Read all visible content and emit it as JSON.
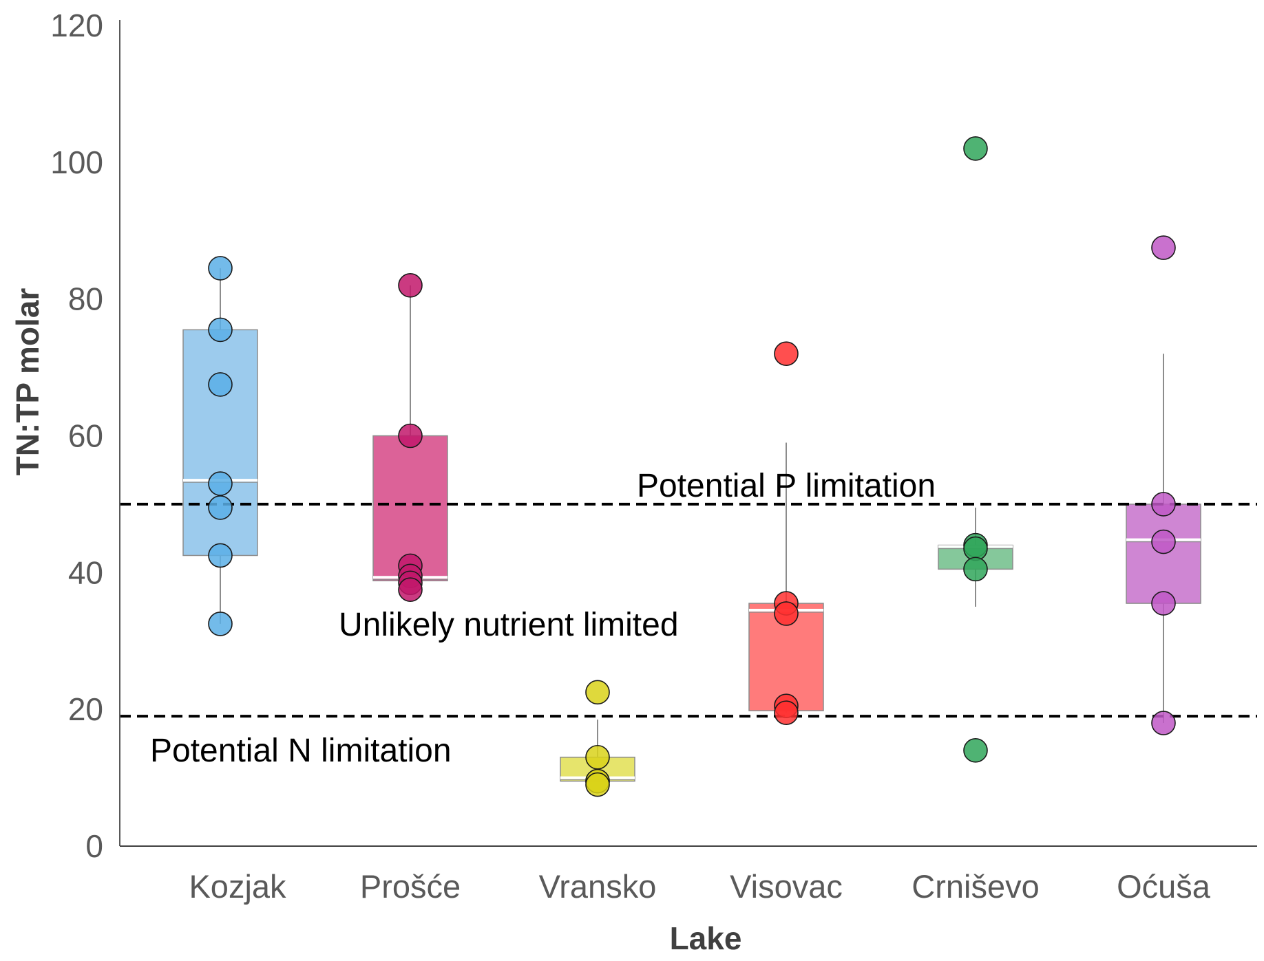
{
  "chart_data": {
    "type": "box",
    "title": "",
    "xlabel": "Lake",
    "ylabel": "TN:TP molar",
    "ylim": [
      0,
      120
    ],
    "yticks": [
      0,
      20,
      40,
      60,
      80,
      100,
      120
    ],
    "grid": false,
    "legend": "none",
    "categories": [
      "Kozjak",
      "Prošće",
      "Vransko",
      "Visovac",
      "Crniševo",
      "Oćuša"
    ],
    "series": [
      {
        "name": "Kozjak",
        "color": "#5aafe6",
        "box_color": "#9ccbed",
        "points": [
          84.5,
          75.5,
          67.5,
          53,
          49.5,
          42.5,
          32.5
        ],
        "min": 32.5,
        "q1": 42.5,
        "median": 53.5,
        "q3": 75.5,
        "max": 84.5
      },
      {
        "name": "Prošće",
        "color": "#c2186b",
        "box_color": "#dc6298",
        "points": [
          82,
          60,
          41,
          39.5,
          38.5,
          37.5
        ],
        "min": 38.5,
        "q1": 38.8,
        "median": 39.3,
        "q3": 60,
        "max": 82
      },
      {
        "name": "Vransko",
        "color": "#d9d21a",
        "box_color": "#e6e46c",
        "points": [
          22.5,
          13,
          9.5,
          9.5,
          9
        ],
        "min": 9.5,
        "q1": 9.5,
        "median": 10,
        "q3": 13,
        "max": 18.5
      },
      {
        "name": "Visovac",
        "color": "#ff3030",
        "box_color": "#ff7b7b",
        "points": [
          72,
          35.5,
          34,
          20.5,
          19.5
        ],
        "min": 19.5,
        "q1": 19.8,
        "median": 34.5,
        "q3": 35.5,
        "max": 59
      },
      {
        "name": "Crniševo",
        "color": "#30a65a",
        "box_color": "#85c89b",
        "points": [
          102,
          44,
          43.5,
          40.5,
          14
        ],
        "min": 35,
        "q1": 40.5,
        "median": 43.8,
        "q3": 44,
        "max": 49.5
      },
      {
        "name": "Oćuša",
        "color": "#bf58c5",
        "box_color": "#cf86d3",
        "points": [
          87.5,
          50,
          44.5,
          35.5,
          18
        ],
        "min": 18,
        "q1": 35.5,
        "median": 44.8,
        "q3": 50,
        "max": 72
      }
    ],
    "reference_lines": [
      {
        "value": 50,
        "label": "Potential P limitation"
      },
      {
        "value": 19,
        "label": "Potential N limitation"
      }
    ],
    "annotations": [
      {
        "text": "Unlikely nutrient limited"
      }
    ]
  }
}
